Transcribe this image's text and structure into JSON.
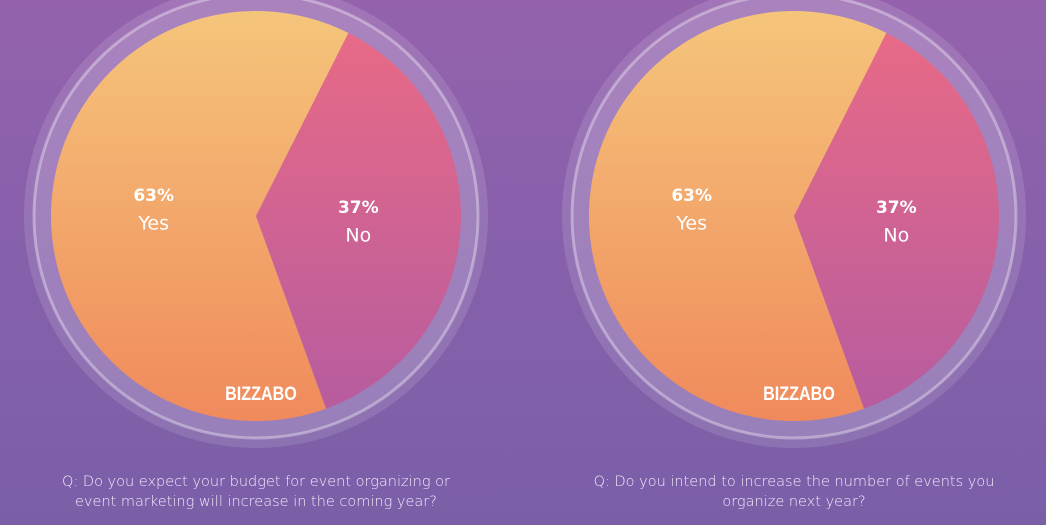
{
  "chart_data": [
    {
      "type": "pie",
      "title": "Q: Do you expect your budget for event organizing or event marketing will increase in the coming year?",
      "categories": [
        "Yes",
        "No"
      ],
      "values": [
        63,
        37
      ],
      "value_labels": [
        "63%",
        "37%"
      ],
      "colors": [
        "#f5c57b",
        "#e86a86"
      ],
      "watermark": "BIZZABO"
    },
    {
      "type": "pie",
      "title": "Q: Do you intend to increase the number of events you organize next year?",
      "categories": [
        "Yes",
        "No"
      ],
      "values": [
        63,
        37
      ],
      "value_labels": [
        "63%",
        "37%"
      ],
      "colors": [
        "#f5c57b",
        "#e86a86"
      ],
      "watermark": "BIZZABO"
    }
  ]
}
